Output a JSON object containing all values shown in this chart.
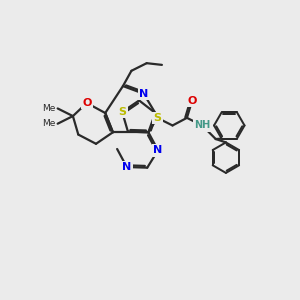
{
  "bg_color": "#ebebeb",
  "atom_colors": {
    "C": "#2a2a2a",
    "N": "#0000ee",
    "O": "#dd0000",
    "S": "#bbbb00",
    "NH": "#449988"
  },
  "line_color": "#2a2a2a",
  "line_width": 1.6,
  "figsize": [
    3.0,
    3.0
  ],
  "dpi": 100
}
